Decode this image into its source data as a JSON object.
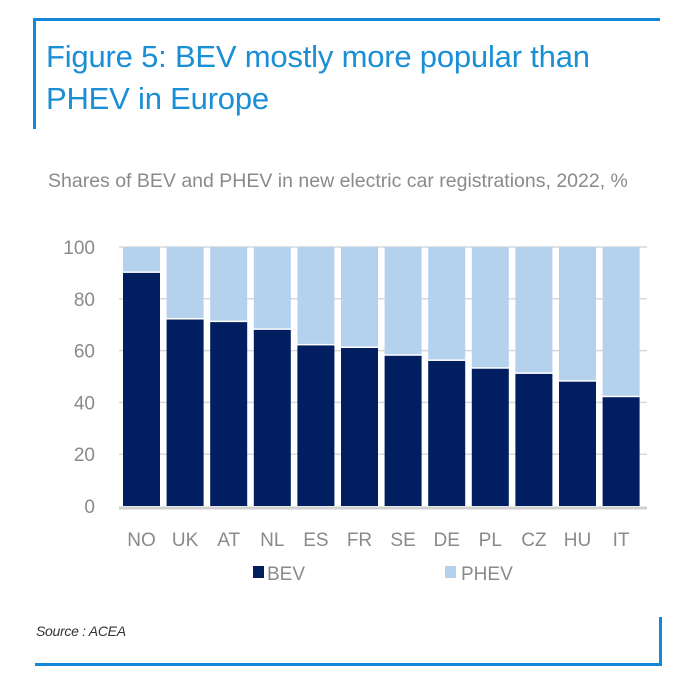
{
  "figure": {
    "title": "Figure 5: BEV mostly more popular than PHEV in Europe",
    "subtitle": "Shares of BEV and PHEV in new electric car registrations, 2022, %",
    "source": "Source : ACEA",
    "accent_color": "#1488d8"
  },
  "chart_data": {
    "type": "bar",
    "stacked": true,
    "title": "Figure 5: BEV mostly more popular than PHEV in Europe",
    "subtitle": "Shares of BEV and PHEV in new electric car registrations, 2022, %",
    "xlabel": "",
    "ylabel": "",
    "categories": [
      "NO",
      "UK",
      "AT",
      "NL",
      "ES",
      "FR",
      "SE",
      "DE",
      "PL",
      "CZ",
      "HU",
      "IT"
    ],
    "series": [
      {
        "name": "BEV",
        "color": "#001e60",
        "values": [
          90,
          72,
          71,
          68,
          62,
          61,
          58,
          56,
          53,
          51,
          48,
          42
        ]
      },
      {
        "name": "PHEV",
        "color": "#b4d2ee",
        "values": [
          10,
          28,
          29,
          32,
          38,
          39,
          42,
          44,
          47,
          49,
          52,
          58
        ]
      }
    ],
    "ylim": [
      0,
      100
    ],
    "yticks": [
      0,
      20,
      40,
      60,
      80,
      100
    ],
    "grid": true,
    "legend_position": "bottom",
    "source": "Source : ACEA"
  }
}
